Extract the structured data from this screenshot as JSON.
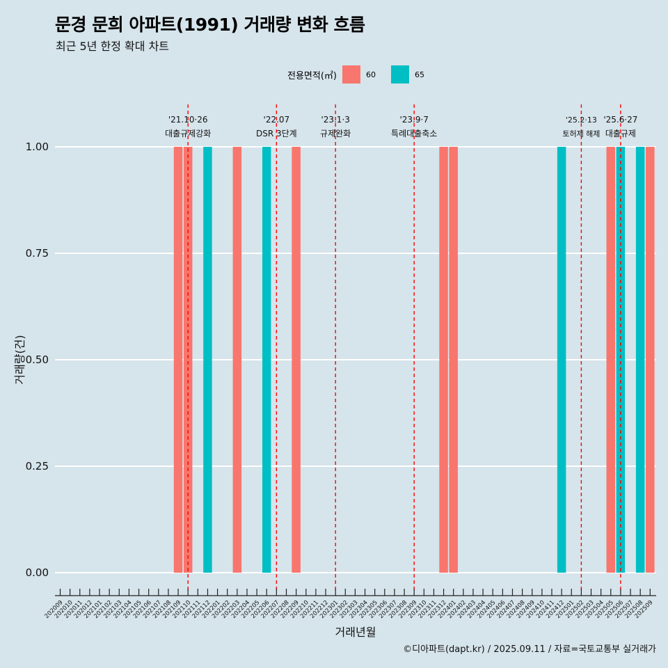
{
  "header": {
    "title": "문경 문희 아파트(1991) 거래량 변화 흐름",
    "subtitle": "최근 5년 한정 확대 차트"
  },
  "legend": {
    "title": "전용면적(㎡)",
    "items": [
      {
        "label": "60",
        "color": "#F8766D"
      },
      {
        "label": "65",
        "color": "#00BFC4"
      }
    ]
  },
  "caption": "©디아파트(dapt.kr) / 2025.09.11 / 자료=국토교통부 실거래가",
  "chart_data": {
    "type": "bar",
    "xlabel": "거래년월",
    "ylabel": "거래량(건)",
    "ylim": [
      0,
      1
    ],
    "yticks": [
      "0.00",
      "0.25",
      "0.50",
      "0.75",
      "1.00"
    ],
    "categories": [
      "202009",
      "202010",
      "202011",
      "202012",
      "202101",
      "202102",
      "202103",
      "202104",
      "202105",
      "202106",
      "202107",
      "202108",
      "202109",
      "202110",
      "202111",
      "202112",
      "202201",
      "202202",
      "202203",
      "202204",
      "202205",
      "202206",
      "202207",
      "202208",
      "202209",
      "202210",
      "202211",
      "202212",
      "202301",
      "202302",
      "202303",
      "202304",
      "202305",
      "202306",
      "202307",
      "202308",
      "202309",
      "202310",
      "202311",
      "202312",
      "202401",
      "202402",
      "202403",
      "202404",
      "202405",
      "202406",
      "202407",
      "202408",
      "202409",
      "202410",
      "202411",
      "202412",
      "202501",
      "202502",
      "202503",
      "202504",
      "202505",
      "202506",
      "202507",
      "202508",
      "202509"
    ],
    "bars": [
      {
        "x": "202109",
        "series": "60",
        "value": 1
      },
      {
        "x": "202110",
        "series": "60",
        "value": 1
      },
      {
        "x": "202112",
        "series": "65",
        "value": 1
      },
      {
        "x": "202203",
        "series": "60",
        "value": 1
      },
      {
        "x": "202206",
        "series": "65",
        "value": 1
      },
      {
        "x": "202209",
        "series": "60",
        "value": 1
      },
      {
        "x": "202312",
        "series": "60",
        "value": 1
      },
      {
        "x": "202401",
        "series": "60",
        "value": 1
      },
      {
        "x": "202412",
        "series": "65",
        "value": 1
      },
      {
        "x": "202505",
        "series": "60",
        "value": 1
      },
      {
        "x": "202506",
        "series": "65",
        "value": 1
      },
      {
        "x": "202508",
        "series": "65",
        "value": 1
      },
      {
        "x": "202509",
        "series": "60",
        "value": 1
      }
    ],
    "events": [
      {
        "x": "202110",
        "date": "'21.10·26",
        "label": "대출규제강화"
      },
      {
        "x": "202207",
        "date": "'22.07",
        "label": "DSR 3단계"
      },
      {
        "x": "202301",
        "date": "'23.1·3",
        "label": "규제완화"
      },
      {
        "x": "202309",
        "date": "'23.9·7",
        "label": "특례대출축소"
      },
      {
        "x": "202502",
        "date": "'25.2·13",
        "label": "토허제 해제"
      },
      {
        "x": "202506",
        "date": "'25.6·27",
        "label": "대출규제"
      }
    ],
    "event_line_color": "#FF0000",
    "grid": true
  }
}
